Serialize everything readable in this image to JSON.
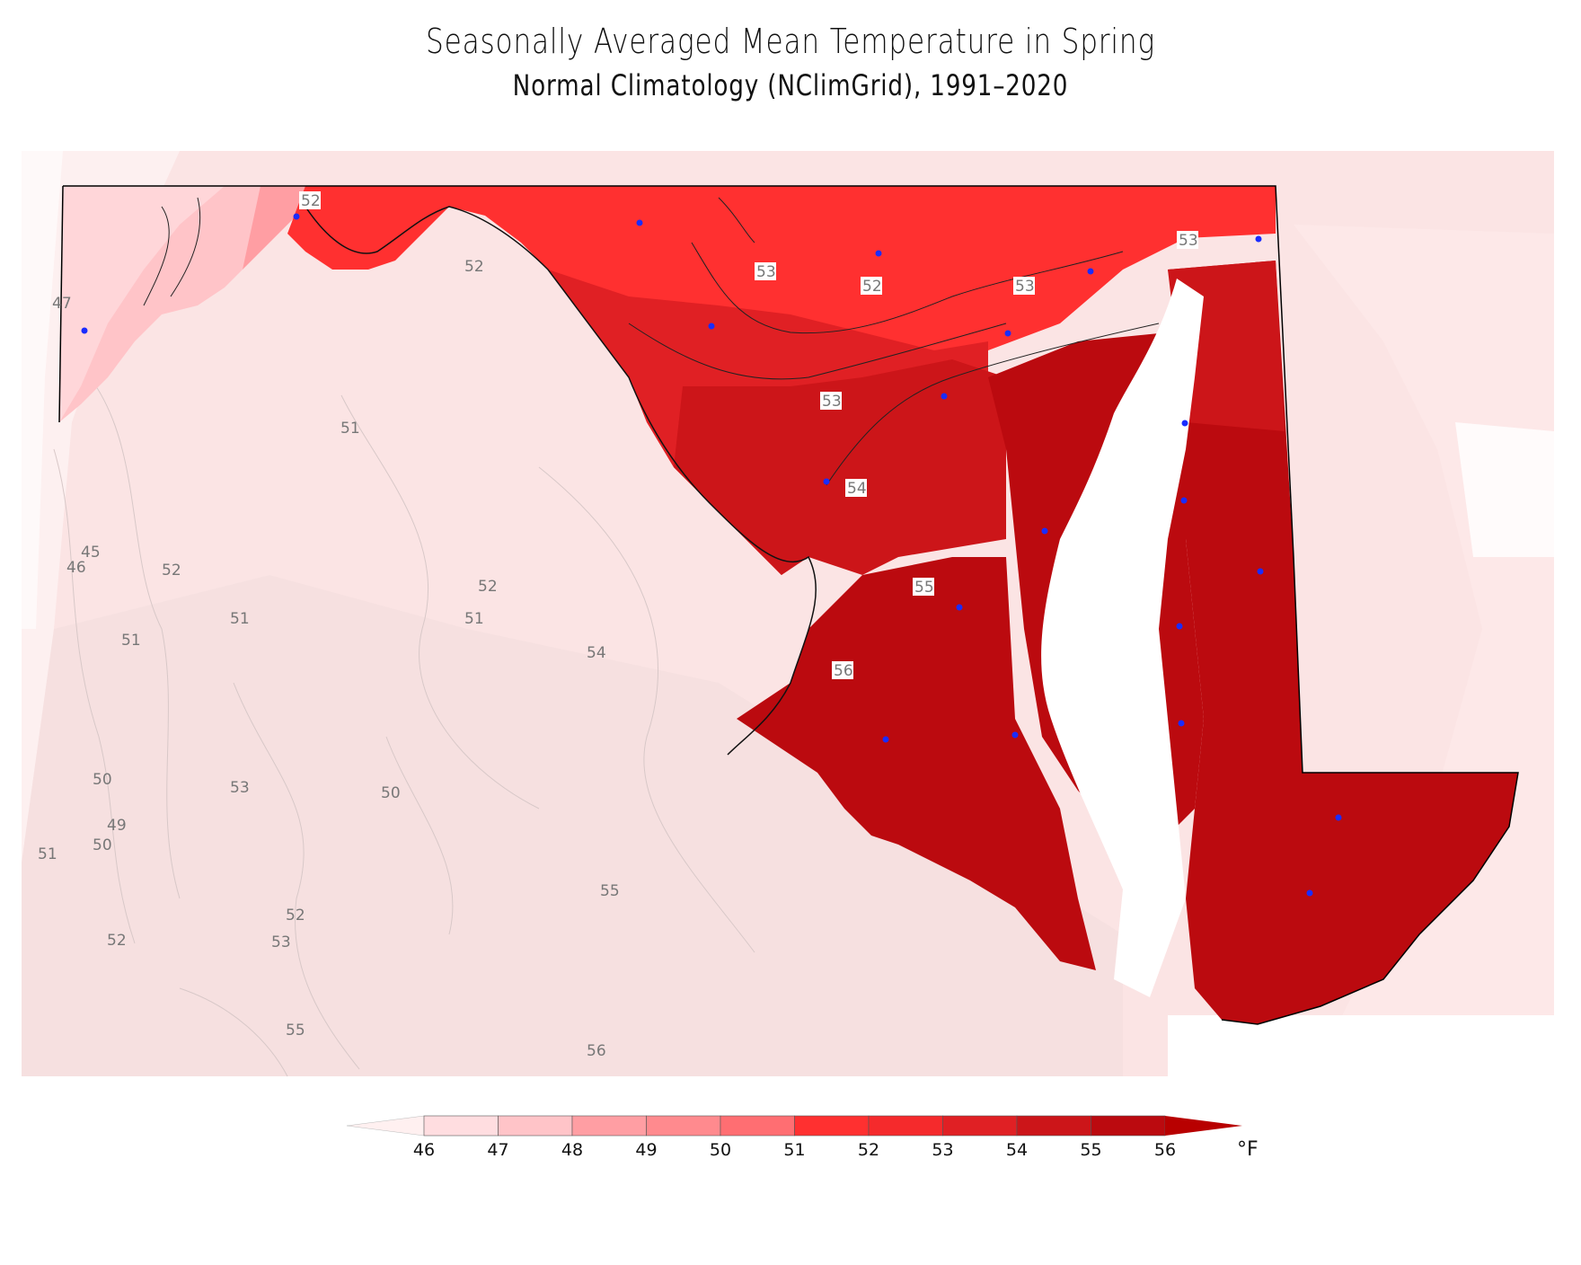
{
  "title": "Seasonally Averaged Mean Temperature in Spring",
  "subtitle": "Normal Climatology (NClimGrid), 1991–2020",
  "legend": {
    "ticks": [
      "46",
      "47",
      "48",
      "49",
      "50",
      "51",
      "52",
      "53",
      "54",
      "55",
      "56"
    ],
    "unit": "°F",
    "colors": [
      "#ffdde0",
      "#ffc4c8",
      "#ff9ea3",
      "#ff8a8e",
      "#ff6e72",
      "#ff3030",
      "#f52a2c",
      "#e02024",
      "#cc1519",
      "#bb0a0f"
    ],
    "under_color": "#fff0f0",
    "over_color": "#b80000"
  },
  "contour_labels": [
    {
      "text": "52"
    },
    {
      "text": "52"
    },
    {
      "text": "53"
    },
    {
      "text": "52"
    },
    {
      "text": "53"
    },
    {
      "text": "53"
    },
    {
      "text": "53"
    },
    {
      "text": "54"
    },
    {
      "text": "55"
    },
    {
      "text": "56"
    },
    {
      "text": "47"
    },
    {
      "text": "51"
    },
    {
      "text": "45"
    },
    {
      "text": "46"
    },
    {
      "text": "52"
    },
    {
      "text": "51"
    },
    {
      "text": "51"
    },
    {
      "text": "52"
    },
    {
      "text": "51"
    },
    {
      "text": "54"
    },
    {
      "text": "50"
    },
    {
      "text": "53"
    },
    {
      "text": "50"
    },
    {
      "text": "49"
    },
    {
      "text": "50"
    },
    {
      "text": "51"
    },
    {
      "text": "52"
    },
    {
      "text": "53"
    },
    {
      "text": "52"
    },
    {
      "text": "55"
    },
    {
      "text": "55"
    },
    {
      "text": "56"
    }
  ],
  "station_count": 21
}
